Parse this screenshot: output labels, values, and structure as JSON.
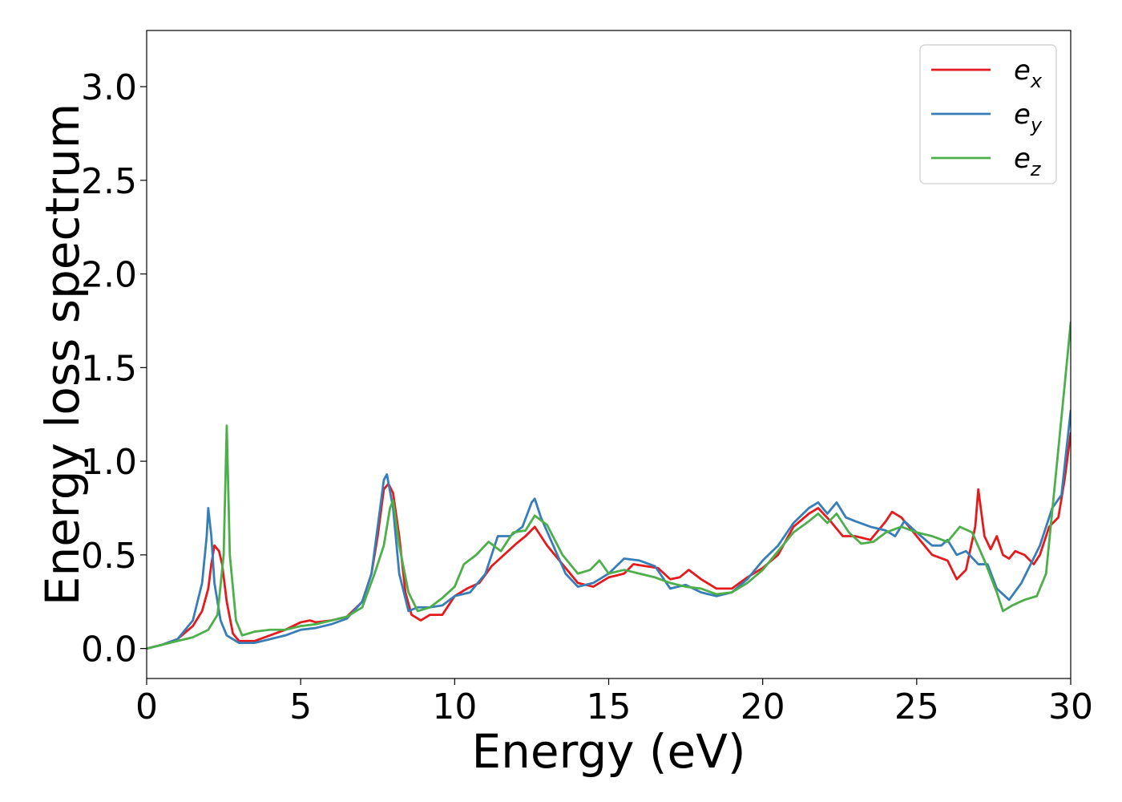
{
  "chart_data": {
    "type": "line",
    "title": "",
    "xlabel": "Energy (eV)",
    "ylabel": "Energy loss spectrum",
    "xlim": [
      0,
      30
    ],
    "ylim": [
      -0.16,
      3.3
    ],
    "xticks": [
      0,
      5,
      10,
      15,
      20,
      25,
      30
    ],
    "yticks": [
      0.0,
      0.5,
      1.0,
      1.5,
      2.0,
      2.5,
      3.0
    ],
    "xtick_labels": [
      "0",
      "5",
      "10",
      "15",
      "20",
      "25",
      "30"
    ],
    "ytick_labels": [
      "0.0",
      "0.5",
      "1.0",
      "1.5",
      "2.0",
      "2.5",
      "3.0"
    ],
    "grid": false,
    "legend_position": "top-right",
    "series": [
      {
        "name": "e",
        "subscript": "x",
        "color": "#e41a1c",
        "points": [
          [
            0,
            0
          ],
          [
            0.5,
            0.02
          ],
          [
            1.0,
            0.05
          ],
          [
            1.5,
            0.12
          ],
          [
            1.8,
            0.2
          ],
          [
            2.0,
            0.32
          ],
          [
            2.1,
            0.45
          ],
          [
            2.2,
            0.55
          ],
          [
            2.35,
            0.52
          ],
          [
            2.45,
            0.45
          ],
          [
            2.6,
            0.25
          ],
          [
            2.8,
            0.08
          ],
          [
            3.0,
            0.04
          ],
          [
            3.5,
            0.04
          ],
          [
            4.0,
            0.07
          ],
          [
            4.5,
            0.1
          ],
          [
            5.0,
            0.14
          ],
          [
            5.3,
            0.15
          ],
          [
            5.5,
            0.14
          ],
          [
            6.0,
            0.15
          ],
          [
            6.5,
            0.17
          ],
          [
            7.0,
            0.25
          ],
          [
            7.3,
            0.4
          ],
          [
            7.5,
            0.6
          ],
          [
            7.7,
            0.85
          ],
          [
            7.85,
            0.88
          ],
          [
            8.0,
            0.83
          ],
          [
            8.2,
            0.6
          ],
          [
            8.4,
            0.3
          ],
          [
            8.6,
            0.18
          ],
          [
            8.9,
            0.15
          ],
          [
            9.2,
            0.18
          ],
          [
            9.6,
            0.18
          ],
          [
            10.0,
            0.28
          ],
          [
            10.4,
            0.32
          ],
          [
            10.8,
            0.35
          ],
          [
            11.2,
            0.44
          ],
          [
            11.6,
            0.5
          ],
          [
            12.0,
            0.56
          ],
          [
            12.3,
            0.6
          ],
          [
            12.6,
            0.65
          ],
          [
            12.8,
            0.6
          ],
          [
            13.0,
            0.55
          ],
          [
            13.5,
            0.45
          ],
          [
            14.0,
            0.35
          ],
          [
            14.5,
            0.33
          ],
          [
            15.0,
            0.38
          ],
          [
            15.5,
            0.4
          ],
          [
            15.8,
            0.45
          ],
          [
            16.2,
            0.44
          ],
          [
            16.6,
            0.43
          ],
          [
            17.0,
            0.37
          ],
          [
            17.3,
            0.38
          ],
          [
            17.6,
            0.42
          ],
          [
            18.0,
            0.37
          ],
          [
            18.5,
            0.32
          ],
          [
            19.0,
            0.32
          ],
          [
            19.5,
            0.38
          ],
          [
            20.0,
            0.43
          ],
          [
            20.5,
            0.5
          ],
          [
            21.0,
            0.65
          ],
          [
            21.5,
            0.72
          ],
          [
            21.8,
            0.75
          ],
          [
            22.2,
            0.68
          ],
          [
            22.6,
            0.6
          ],
          [
            23.0,
            0.6
          ],
          [
            23.5,
            0.58
          ],
          [
            24.0,
            0.68
          ],
          [
            24.2,
            0.73
          ],
          [
            24.5,
            0.7
          ],
          [
            25.0,
            0.6
          ],
          [
            25.5,
            0.5
          ],
          [
            26.0,
            0.47
          ],
          [
            26.3,
            0.37
          ],
          [
            26.6,
            0.42
          ],
          [
            26.9,
            0.65
          ],
          [
            27.0,
            0.85
          ],
          [
            27.2,
            0.6
          ],
          [
            27.4,
            0.53
          ],
          [
            27.6,
            0.6
          ],
          [
            27.8,
            0.5
          ],
          [
            28.0,
            0.48
          ],
          [
            28.2,
            0.52
          ],
          [
            28.5,
            0.5
          ],
          [
            28.8,
            0.45
          ],
          [
            29.0,
            0.5
          ],
          [
            29.3,
            0.65
          ],
          [
            29.6,
            0.7
          ],
          [
            29.8,
            0.9
          ],
          [
            30.0,
            1.15
          ]
        ]
      },
      {
        "name": "e",
        "subscript": "y",
        "color": "#377eb8",
        "points": [
          [
            0,
            0
          ],
          [
            0.5,
            0.02
          ],
          [
            1.0,
            0.05
          ],
          [
            1.5,
            0.15
          ],
          [
            1.8,
            0.35
          ],
          [
            1.95,
            0.6
          ],
          [
            2.0,
            0.75
          ],
          [
            2.1,
            0.6
          ],
          [
            2.2,
            0.35
          ],
          [
            2.4,
            0.15
          ],
          [
            2.6,
            0.07
          ],
          [
            3.0,
            0.03
          ],
          [
            3.5,
            0.03
          ],
          [
            4.0,
            0.05
          ],
          [
            4.5,
            0.07
          ],
          [
            5.0,
            0.1
          ],
          [
            5.5,
            0.11
          ],
          [
            6.0,
            0.13
          ],
          [
            6.5,
            0.16
          ],
          [
            7.0,
            0.25
          ],
          [
            7.3,
            0.4
          ],
          [
            7.5,
            0.65
          ],
          [
            7.7,
            0.9
          ],
          [
            7.8,
            0.93
          ],
          [
            8.0,
            0.75
          ],
          [
            8.2,
            0.4
          ],
          [
            8.5,
            0.2
          ],
          [
            8.8,
            0.22
          ],
          [
            9.2,
            0.22
          ],
          [
            9.6,
            0.23
          ],
          [
            10.0,
            0.28
          ],
          [
            10.5,
            0.3
          ],
          [
            11.0,
            0.4
          ],
          [
            11.4,
            0.6
          ],
          [
            11.8,
            0.6
          ],
          [
            12.2,
            0.65
          ],
          [
            12.5,
            0.78
          ],
          [
            12.6,
            0.8
          ],
          [
            12.8,
            0.7
          ],
          [
            13.2,
            0.55
          ],
          [
            13.6,
            0.4
          ],
          [
            14.0,
            0.33
          ],
          [
            14.5,
            0.35
          ],
          [
            15.0,
            0.4
          ],
          [
            15.5,
            0.48
          ],
          [
            16.0,
            0.47
          ],
          [
            16.5,
            0.44
          ],
          [
            17.0,
            0.32
          ],
          [
            17.5,
            0.34
          ],
          [
            18.0,
            0.3
          ],
          [
            18.5,
            0.28
          ],
          [
            19.0,
            0.3
          ],
          [
            19.5,
            0.37
          ],
          [
            20.0,
            0.47
          ],
          [
            20.5,
            0.55
          ],
          [
            21.0,
            0.67
          ],
          [
            21.5,
            0.75
          ],
          [
            21.8,
            0.78
          ],
          [
            22.1,
            0.72
          ],
          [
            22.4,
            0.78
          ],
          [
            22.7,
            0.7
          ],
          [
            23.0,
            0.68
          ],
          [
            23.5,
            0.65
          ],
          [
            24.0,
            0.63
          ],
          [
            24.3,
            0.6
          ],
          [
            24.6,
            0.68
          ],
          [
            25.0,
            0.62
          ],
          [
            25.5,
            0.55
          ],
          [
            25.8,
            0.55
          ],
          [
            26.0,
            0.58
          ],
          [
            26.3,
            0.5
          ],
          [
            26.6,
            0.52
          ],
          [
            27.0,
            0.45
          ],
          [
            27.3,
            0.45
          ],
          [
            27.6,
            0.32
          ],
          [
            28.0,
            0.26
          ],
          [
            28.4,
            0.35
          ],
          [
            28.7,
            0.45
          ],
          [
            29.0,
            0.55
          ],
          [
            29.4,
            0.75
          ],
          [
            29.7,
            0.82
          ],
          [
            30.0,
            1.27
          ]
        ]
      },
      {
        "name": "e",
        "subscript": "z",
        "color": "#4daf4a",
        "points": [
          [
            0,
            0
          ],
          [
            0.5,
            0.02
          ],
          [
            1.0,
            0.04
          ],
          [
            1.5,
            0.06
          ],
          [
            2.0,
            0.1
          ],
          [
            2.3,
            0.18
          ],
          [
            2.5,
            0.5
          ],
          [
            2.6,
            1.19
          ],
          [
            2.7,
            0.5
          ],
          [
            2.9,
            0.15
          ],
          [
            3.1,
            0.07
          ],
          [
            3.5,
            0.09
          ],
          [
            4.0,
            0.1
          ],
          [
            4.5,
            0.1
          ],
          [
            5.0,
            0.12
          ],
          [
            5.5,
            0.13
          ],
          [
            6.0,
            0.15
          ],
          [
            6.5,
            0.17
          ],
          [
            7.0,
            0.22
          ],
          [
            7.4,
            0.4
          ],
          [
            7.7,
            0.55
          ],
          [
            7.9,
            0.75
          ],
          [
            8.0,
            0.79
          ],
          [
            8.2,
            0.55
          ],
          [
            8.5,
            0.3
          ],
          [
            8.8,
            0.2
          ],
          [
            9.2,
            0.22
          ],
          [
            9.6,
            0.27
          ],
          [
            10.0,
            0.33
          ],
          [
            10.3,
            0.45
          ],
          [
            10.7,
            0.5
          ],
          [
            11.1,
            0.57
          ],
          [
            11.5,
            0.52
          ],
          [
            11.9,
            0.62
          ],
          [
            12.3,
            0.63
          ],
          [
            12.6,
            0.71
          ],
          [
            13.0,
            0.66
          ],
          [
            13.5,
            0.5
          ],
          [
            14.0,
            0.4
          ],
          [
            14.4,
            0.42
          ],
          [
            14.7,
            0.47
          ],
          [
            15.0,
            0.4
          ],
          [
            15.5,
            0.42
          ],
          [
            16.0,
            0.4
          ],
          [
            16.5,
            0.38
          ],
          [
            17.0,
            0.35
          ],
          [
            17.5,
            0.33
          ],
          [
            18.0,
            0.32
          ],
          [
            18.5,
            0.29
          ],
          [
            19.0,
            0.3
          ],
          [
            19.5,
            0.35
          ],
          [
            20.0,
            0.42
          ],
          [
            20.5,
            0.52
          ],
          [
            21.0,
            0.62
          ],
          [
            21.5,
            0.68
          ],
          [
            21.8,
            0.72
          ],
          [
            22.1,
            0.67
          ],
          [
            22.4,
            0.72
          ],
          [
            22.8,
            0.62
          ],
          [
            23.2,
            0.56
          ],
          [
            23.6,
            0.57
          ],
          [
            24.0,
            0.62
          ],
          [
            24.5,
            0.65
          ],
          [
            25.0,
            0.62
          ],
          [
            25.5,
            0.6
          ],
          [
            26.0,
            0.57
          ],
          [
            26.4,
            0.65
          ],
          [
            26.8,
            0.62
          ],
          [
            27.2,
            0.47
          ],
          [
            27.6,
            0.3
          ],
          [
            27.8,
            0.2
          ],
          [
            28.1,
            0.23
          ],
          [
            28.5,
            0.26
          ],
          [
            28.9,
            0.28
          ],
          [
            29.2,
            0.4
          ],
          [
            29.5,
            0.9
          ],
          [
            29.8,
            1.4
          ],
          [
            30.0,
            1.74
          ]
        ]
      }
    ]
  }
}
